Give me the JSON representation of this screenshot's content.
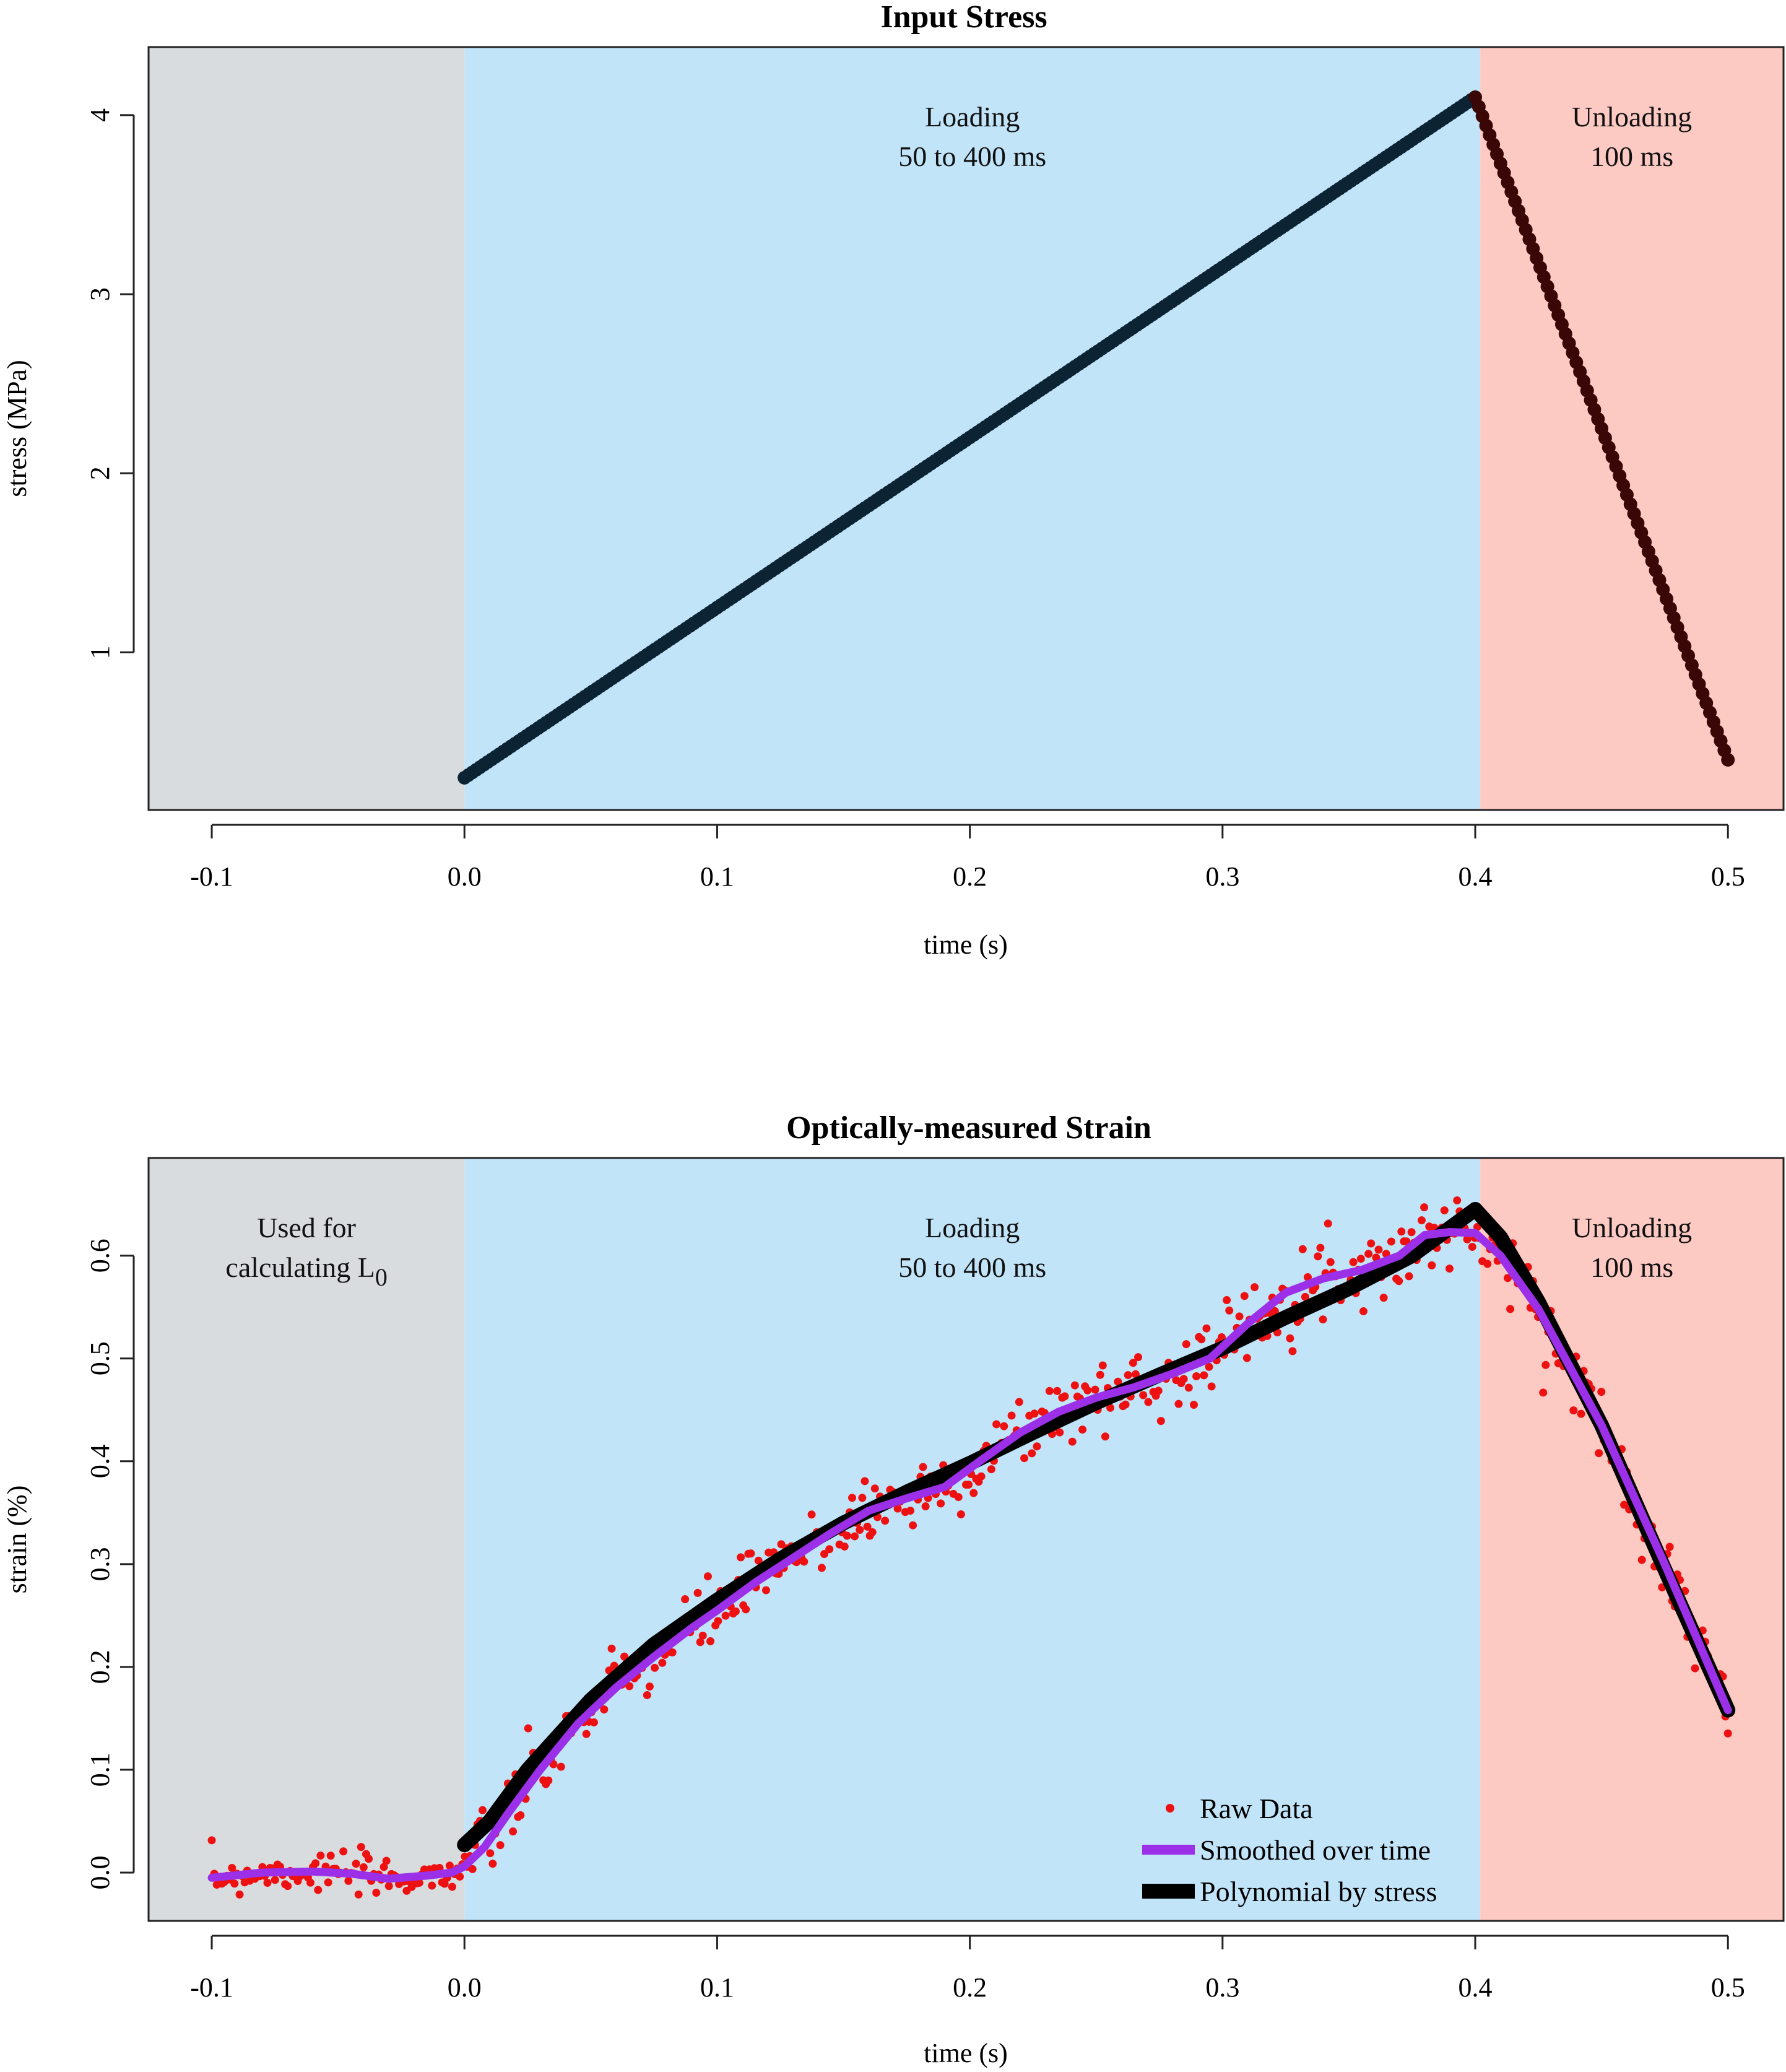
{
  "chart_data": [
    {
      "type": "scatter",
      "title": "Input Stress",
      "xlabel": "time (s)",
      "ylabel": "stress (MPa)",
      "xlim": [
        -0.125,
        0.522
      ],
      "ylim": [
        0.12,
        4.38
      ],
      "xticks": [
        -0.1,
        0.0,
        0.1,
        0.2,
        0.3,
        0.4,
        0.5
      ],
      "xtick_labels": [
        "-0.1",
        "0.0",
        "0.1",
        "0.2",
        "0.3",
        "0.4",
        "0.5"
      ],
      "yticks": [
        1,
        2,
        3,
        4
      ],
      "ytick_labels": [
        "1",
        "2",
        "3",
        "4"
      ],
      "regions": [
        {
          "name": "baseline",
          "start": -0.125,
          "end": 0.0,
          "color": "#d9dcdf",
          "lines": []
        },
        {
          "name": "loading",
          "start": 0.0,
          "end": 0.402,
          "color": "#c2e4f9",
          "lines": [
            "Loading",
            "50 to 400 ms"
          ]
        },
        {
          "name": "unloading",
          "start": 0.402,
          "end": 0.522,
          "color": "#fdc9c3",
          "lines": [
            "Unloading",
            "100 ms"
          ]
        }
      ],
      "series": [
        {
          "name": "Loading stress",
          "color": "#0b2333",
          "x": [
            0.0,
            0.1,
            0.2,
            0.3,
            0.4
          ],
          "y": [
            0.3,
            1.25,
            2.2,
            3.15,
            4.1
          ]
        },
        {
          "name": "Unloading stress",
          "color": "#3a0606",
          "x": [
            0.4,
            0.45,
            0.5
          ],
          "y": [
            4.1,
            2.25,
            0.4
          ]
        }
      ]
    },
    {
      "type": "scatter",
      "title": "Optically-measured Strain",
      "xlabel": "time (s)",
      "ylabel": "strain (%)",
      "xlim": [
        -0.125,
        0.522
      ],
      "ylim": [
        -0.047,
        0.695
      ],
      "xticks": [
        -0.1,
        0.0,
        0.1,
        0.2,
        0.3,
        0.4,
        0.5
      ],
      "xtick_labels": [
        "-0.1",
        "0.0",
        "0.1",
        "0.2",
        "0.3",
        "0.4",
        "0.5"
      ],
      "yticks": [
        0.0,
        0.1,
        0.2,
        0.3,
        0.4,
        0.5,
        0.6
      ],
      "ytick_labels": [
        "0.0",
        "0.1",
        "0.2",
        "0.3",
        "0.4",
        "0.5",
        "0.6"
      ],
      "regions": [
        {
          "name": "baseline",
          "start": -0.125,
          "end": 0.0,
          "color": "#d9dcdf",
          "lines": [
            "Used for",
            "calculating L"
          ],
          "subscript": "0"
        },
        {
          "name": "loading",
          "start": 0.0,
          "end": 0.402,
          "color": "#c2e4f9",
          "lines": [
            "Loading",
            "50 to 400 ms"
          ]
        },
        {
          "name": "unloading",
          "start": 0.402,
          "end": 0.522,
          "color": "#fdc9c3",
          "lines": [
            "Unloading",
            "100 ms"
          ]
        }
      ],
      "legend": {
        "position": "bottom-right",
        "entries": [
          {
            "label": "Raw Data",
            "kind": "point",
            "color": "#ee1111"
          },
          {
            "label": "Smoothed over time",
            "kind": "line",
            "color": "#9b30e8"
          },
          {
            "label": "Polynomial by stress",
            "kind": "thick-line",
            "color": "#000000"
          }
        ]
      },
      "series": [
        {
          "name": "Raw Data",
          "color": "#ee1111",
          "noise": 0.017,
          "count": 600,
          "x_range": [
            -0.1,
            0.5
          ],
          "seed": 7
        },
        {
          "name": "Polynomial by stress",
          "color": "#000000",
          "x": [
            0.0,
            0.01,
            0.025,
            0.05,
            0.075,
            0.1,
            0.125,
            0.15,
            0.175,
            0.2,
            0.225,
            0.25,
            0.275,
            0.3,
            0.325,
            0.35,
            0.375,
            0.4,
            0.41,
            0.425,
            0.45,
            0.475,
            0.5
          ],
          "y": [
            0.027,
            0.05,
            0.1,
            0.168,
            0.222,
            0.265,
            0.305,
            0.34,
            0.37,
            0.398,
            0.428,
            0.457,
            0.484,
            0.51,
            0.54,
            0.568,
            0.6,
            0.645,
            0.618,
            0.555,
            0.435,
            0.295,
            0.158
          ]
        },
        {
          "name": "Smoothed over time",
          "color": "#9b30e8",
          "x": [
            -0.1,
            -0.08,
            -0.06,
            -0.045,
            -0.03,
            -0.015,
            -0.005,
            0.0,
            0.008,
            0.018,
            0.03,
            0.045,
            0.06,
            0.075,
            0.09,
            0.1,
            0.115,
            0.13,
            0.145,
            0.16,
            0.175,
            0.19,
            0.205,
            0.22,
            0.235,
            0.25,
            0.265,
            0.28,
            0.295,
            0.31,
            0.325,
            0.34,
            0.355,
            0.37,
            0.38,
            0.39,
            0.4,
            0.41,
            0.425,
            0.45,
            0.475,
            0.5
          ],
          "y": [
            -0.005,
            0.0,
            0.001,
            -0.001,
            -0.006,
            -0.003,
            0.0,
            0.006,
            0.025,
            0.06,
            0.1,
            0.145,
            0.18,
            0.21,
            0.238,
            0.255,
            0.282,
            0.306,
            0.33,
            0.352,
            0.364,
            0.375,
            0.402,
            0.428,
            0.448,
            0.462,
            0.472,
            0.485,
            0.5,
            0.534,
            0.564,
            0.578,
            0.586,
            0.6,
            0.62,
            0.623,
            0.622,
            0.6,
            0.548,
            0.435,
            0.3,
            0.158
          ]
        }
      ]
    }
  ]
}
